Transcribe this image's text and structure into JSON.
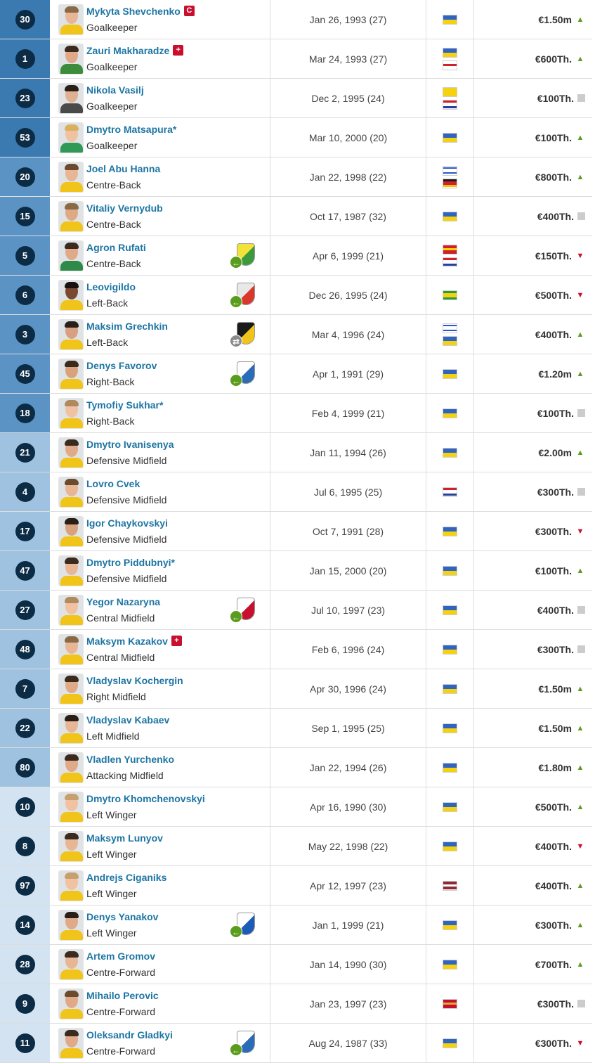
{
  "colors": {
    "number_badge": "#0c2b45",
    "name_link": "#1d75a3",
    "trend_up": "#5a9c1d",
    "trend_down": "#c8102e",
    "trend_neutral": "#cccccc",
    "stripe_goalkeeper": "#3a7ab1",
    "stripe_defender": "#5a93c4",
    "stripe_midfield": "#9fc2e0",
    "stripe_forward": "#d3e3f1"
  },
  "players": [
    {
      "number": "30",
      "name": "Mykyta Shevchenko",
      "name_tag": "C",
      "position": "Goalkeeper",
      "dob": "Jan 26, 1993 (27)",
      "nationalities": [
        "ukraine"
      ],
      "value": "€1.50m",
      "trend": "up",
      "stripe": "#3a7ab1",
      "loan": null,
      "photo": {
        "skin": "#e8b595",
        "hair": "#8a6a45",
        "shirt": "#f0c419"
      }
    },
    {
      "number": "1",
      "name": "Zauri Makharadze",
      "name_tag": "+",
      "position": "Goalkeeper",
      "dob": "Mar 24, 1993 (27)",
      "nationalities": [
        "ukraine",
        "georgia"
      ],
      "value": "€600Th.",
      "trend": "up",
      "stripe": "#3a7ab1",
      "loan": null,
      "photo": {
        "skin": "#e2a988",
        "hair": "#3b2a1e",
        "shirt": "#3c8c3c"
      }
    },
    {
      "number": "23",
      "name": "Nikola Vasilj",
      "name_tag": "",
      "position": "Goalkeeper",
      "dob": "Dec 2, 1995 (24)",
      "nationalities": [
        "bosnia",
        "croatia"
      ],
      "value": "€100Th.",
      "trend": "neutral",
      "stripe": "#3a7ab1",
      "loan": null,
      "photo": {
        "skin": "#e0b090",
        "hair": "#2a1f18",
        "shirt": "#4a4a4a"
      }
    },
    {
      "number": "53",
      "name": "Dmytro Matsapura*",
      "name_tag": "",
      "position": "Goalkeeper",
      "dob": "Mar 10, 2000 (20)",
      "nationalities": [
        "ukraine"
      ],
      "value": "€100Th.",
      "trend": "up",
      "stripe": "#3a7ab1",
      "loan": null,
      "photo": {
        "skin": "#f0c2a2",
        "hair": "#d9b060",
        "shirt": "#2f9a56"
      }
    },
    {
      "number": "20",
      "name": "Joel Abu Hanna",
      "name_tag": "",
      "position": "Centre-Back",
      "dob": "Jan 22, 1998 (22)",
      "nationalities": [
        "israel",
        "germany"
      ],
      "value": "€800Th.",
      "trend": "up",
      "stripe": "#5a93c4",
      "loan": null,
      "photo": {
        "skin": "#e8b595",
        "hair": "#6b4a2e",
        "shirt": "#f0c419"
      }
    },
    {
      "number": "15",
      "name": "Vitaliy Vernydub",
      "name_tag": "",
      "position": "Centre-Back",
      "dob": "Oct 17, 1987 (32)",
      "nationalities": [
        "ukraine"
      ],
      "value": "€400Th.",
      "trend": "neutral",
      "stripe": "#5a93c4",
      "loan": null,
      "photo": {
        "skin": "#deaa85",
        "hair": "#8a6a45",
        "shirt": "#f0c419"
      }
    },
    {
      "number": "5",
      "name": "Agron Rufati",
      "name_tag": "",
      "position": "Centre-Back",
      "dob": "Apr 6, 1999 (21)",
      "nationalities": [
        "macedonia",
        "croatia"
      ],
      "value": "€150Th.",
      "trend": "down",
      "stripe": "#5a93c4",
      "loan": {
        "crest": "#f2e23a",
        "crest2": "#3c9a3c",
        "dir": "in"
      },
      "photo": {
        "skin": "#e0aa88",
        "hair": "#3b2a1e",
        "shirt": "#2f8a4a"
      }
    },
    {
      "number": "6",
      "name": "Leovigildo",
      "name_tag": "",
      "position": "Left-Back",
      "dob": "Dec 26, 1995 (24)",
      "nationalities": [
        "brazil"
      ],
      "value": "€500Th.",
      "trend": "down",
      "stripe": "#5a93c4",
      "loan": {
        "crest": "#e8e8e8",
        "crest2": "#d9362c",
        "dir": "in"
      },
      "photo": {
        "skin": "#7a4a30",
        "hair": "#1a1210",
        "shirt": "#f0c419"
      }
    },
    {
      "number": "3",
      "name": "Maksim Grechkin",
      "name_tag": "",
      "position": "Left-Back",
      "dob": "Mar 4, 1996 (24)",
      "nationalities": [
        "israel",
        "ukraine"
      ],
      "value": "€400Th.",
      "trend": "up",
      "stripe": "#5a93c4",
      "loan": {
        "crest": "#1a1a1a",
        "crest2": "#f0c419",
        "dir": "swap"
      },
      "photo": {
        "skin": "#d8a080",
        "hair": "#2a1f18",
        "shirt": "#f0c419"
      }
    },
    {
      "number": "45",
      "name": "Denys Favorov",
      "name_tag": "",
      "position": "Right-Back",
      "dob": "Apr 1, 1991 (29)",
      "nationalities": [
        "ukraine"
      ],
      "value": "€1.20m",
      "trend": "up",
      "stripe": "#5a93c4",
      "loan": {
        "crest": "#ffffff",
        "crest2": "#2b6cb8",
        "dir": "in"
      },
      "photo": {
        "skin": "#d8a27e",
        "hair": "#3b2a1e",
        "shirt": "#f0c419"
      }
    },
    {
      "number": "18",
      "name": "Tymofiy Sukhar*",
      "name_tag": "",
      "position": "Right-Back",
      "dob": "Feb 4, 1999 (21)",
      "nationalities": [
        "ukraine"
      ],
      "value": "€100Th.",
      "trend": "neutral",
      "stripe": "#5a93c4",
      "loan": null,
      "photo": {
        "skin": "#f0c2a2",
        "hair": "#b08a5e",
        "shirt": "#f0c419"
      }
    },
    {
      "number": "21",
      "name": "Dmytro Ivanisenya",
      "name_tag": "",
      "position": "Defensive Midfield",
      "dob": "Jan 11, 1994 (26)",
      "nationalities": [
        "ukraine"
      ],
      "value": "€2.00m",
      "trend": "up",
      "stripe": "#9fc2e0",
      "loan": null,
      "photo": {
        "skin": "#e0aa88",
        "hair": "#3b2a1e",
        "shirt": "#f0c419"
      }
    },
    {
      "number": "4",
      "name": "Lovro Cvek",
      "name_tag": "",
      "position": "Defensive Midfield",
      "dob": "Jul 6, 1995 (25)",
      "nationalities": [
        "croatia"
      ],
      "value": "€300Th.",
      "trend": "neutral",
      "stripe": "#9fc2e0",
      "loan": null,
      "photo": {
        "skin": "#e8b595",
        "hair": "#6b4a2e",
        "shirt": "#f0c419"
      }
    },
    {
      "number": "17",
      "name": "Igor Chaykovskyi",
      "name_tag": "",
      "position": "Defensive Midfield",
      "dob": "Oct 7, 1991 (28)",
      "nationalities": [
        "ukraine"
      ],
      "value": "€300Th.",
      "trend": "down",
      "stripe": "#9fc2e0",
      "loan": null,
      "photo": {
        "skin": "#d8a27e",
        "hair": "#2a1f18",
        "shirt": "#f0c419"
      }
    },
    {
      "number": "47",
      "name": "Dmytro Piddubnyi*",
      "name_tag": "",
      "position": "Defensive Midfield",
      "dob": "Jan 15, 2000 (20)",
      "nationalities": [
        "ukraine"
      ],
      "value": "€100Th.",
      "trend": "up",
      "stripe": "#9fc2e0",
      "loan": null,
      "photo": {
        "skin": "#e8b595",
        "hair": "#3b2a1e",
        "shirt": "#f0c419"
      }
    },
    {
      "number": "27",
      "name": "Yegor Nazaryna",
      "name_tag": "",
      "position": "Central Midfield",
      "dob": "Jul 10, 1997 (23)",
      "nationalities": [
        "ukraine"
      ],
      "value": "€400Th.",
      "trend": "neutral",
      "stripe": "#9fc2e0",
      "loan": {
        "crest": "#ffffff",
        "crest2": "#c8102e",
        "dir": "in"
      },
      "photo": {
        "skin": "#f0c2a2",
        "hair": "#b08a5e",
        "shirt": "#f0c419"
      }
    },
    {
      "number": "48",
      "name": "Maksym Kazakov",
      "name_tag": "+",
      "position": "Central Midfield",
      "dob": "Feb 6, 1996 (24)",
      "nationalities": [
        "ukraine"
      ],
      "value": "€300Th.",
      "trend": "neutral",
      "stripe": "#9fc2e0",
      "loan": null,
      "photo": {
        "skin": "#e8b595",
        "hair": "#8a6a45",
        "shirt": "#f0c419"
      }
    },
    {
      "number": "7",
      "name": "Vladyslav Kochergin",
      "name_tag": "",
      "position": "Right Midfield",
      "dob": "Apr 30, 1996 (24)",
      "nationalities": [
        "ukraine"
      ],
      "value": "€1.50m",
      "trend": "up",
      "stripe": "#9fc2e0",
      "loan": null,
      "photo": {
        "skin": "#e0aa88",
        "hair": "#3b2a1e",
        "shirt": "#f0c419"
      }
    },
    {
      "number": "22",
      "name": "Vladyslav Kabaev",
      "name_tag": "",
      "position": "Left Midfield",
      "dob": "Sep 1, 1995 (25)",
      "nationalities": [
        "ukraine"
      ],
      "value": "€1.50m",
      "trend": "up",
      "stripe": "#9fc2e0",
      "loan": null,
      "photo": {
        "skin": "#e8b595",
        "hair": "#2a1f18",
        "shirt": "#f0c419"
      }
    },
    {
      "number": "80",
      "name": "Vladlen Yurchenko",
      "name_tag": "",
      "position": "Attacking Midfield",
      "dob": "Jan 22, 1994 (26)",
      "nationalities": [
        "ukraine"
      ],
      "value": "€1.80m",
      "trend": "up",
      "stripe": "#9fc2e0",
      "loan": null,
      "photo": {
        "skin": "#e0aa88",
        "hair": "#3b2a1e",
        "shirt": "#f0c419"
      }
    },
    {
      "number": "10",
      "name": "Dmytro Khomchenovskyi",
      "name_tag": "",
      "position": "Left Winger",
      "dob": "Apr 16, 1990 (30)",
      "nationalities": [
        "ukraine"
      ],
      "value": "€500Th.",
      "trend": "up",
      "stripe": "#d3e3f1",
      "loan": null,
      "photo": {
        "skin": "#f0c2a2",
        "hair": "#c8a070",
        "shirt": "#f0c419"
      }
    },
    {
      "number": "8",
      "name": "Maksym Lunyov",
      "name_tag": "",
      "position": "Left Winger",
      "dob": "May 22, 1998 (22)",
      "nationalities": [
        "ukraine"
      ],
      "value": "€400Th.",
      "trend": "down",
      "stripe": "#d3e3f1",
      "loan": null,
      "photo": {
        "skin": "#e8b595",
        "hair": "#3b2a1e",
        "shirt": "#f0c419"
      }
    },
    {
      "number": "97",
      "name": "Andrejs Ciganiks",
      "name_tag": "",
      "position": "Left Winger",
      "dob": "Apr 12, 1997 (23)",
      "nationalities": [
        "latvia"
      ],
      "value": "€400Th.",
      "trend": "up",
      "stripe": "#d3e3f1",
      "loan": null,
      "photo": {
        "skin": "#f0c2a2",
        "hair": "#c8a070",
        "shirt": "#f0c419"
      }
    },
    {
      "number": "14",
      "name": "Denys Yanakov",
      "name_tag": "",
      "position": "Left Winger",
      "dob": "Jan 1, 1999 (21)",
      "nationalities": [
        "ukraine"
      ],
      "value": "€300Th.",
      "trend": "up",
      "stripe": "#d3e3f1",
      "loan": {
        "crest": "#ffffff",
        "crest2": "#1d5bb8",
        "dir": "in"
      },
      "photo": {
        "skin": "#e0aa88",
        "hair": "#2a1f18",
        "shirt": "#f0c419"
      }
    },
    {
      "number": "28",
      "name": "Artem Gromov",
      "name_tag": "",
      "position": "Centre-Forward",
      "dob": "Jan 14, 1990 (30)",
      "nationalities": [
        "ukraine"
      ],
      "value": "€700Th.",
      "trend": "up",
      "stripe": "#d3e3f1",
      "loan": null,
      "photo": {
        "skin": "#e8b595",
        "hair": "#3b2a1e",
        "shirt": "#f0c419"
      }
    },
    {
      "number": "9",
      "name": "Mihailo Perovic",
      "name_tag": "",
      "position": "Centre-Forward",
      "dob": "Jan 23, 1997 (23)",
      "nationalities": [
        "montenegro"
      ],
      "value": "€300Th.",
      "trend": "neutral",
      "stripe": "#d3e3f1",
      "loan": null,
      "photo": {
        "skin": "#e0aa88",
        "hair": "#6b4a2e",
        "shirt": "#f0c419"
      }
    },
    {
      "number": "11",
      "name": "Oleksandr Gladkyi",
      "name_tag": "",
      "position": "Centre-Forward",
      "dob": "Aug 24, 1987 (33)",
      "nationalities": [
        "ukraine"
      ],
      "value": "€300Th.",
      "trend": "down",
      "stripe": "#d3e3f1",
      "loan": {
        "crest": "#ffffff",
        "crest2": "#2b6cb8",
        "dir": "in"
      },
      "photo": {
        "skin": "#e0aa88",
        "hair": "#3b2a1e",
        "shirt": "#f0c419"
      }
    }
  ]
}
